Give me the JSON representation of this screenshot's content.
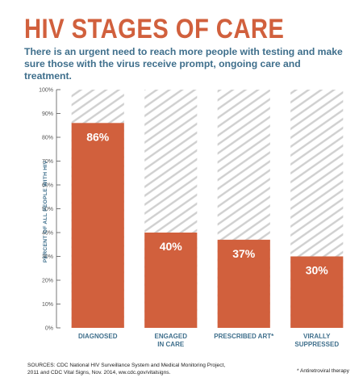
{
  "header": {
    "title": "HIV STAGES OF CARE",
    "subtitle": "There is an urgent need to reach more people with testing and make sure those with the virus receive prompt, ongoing care and treatment."
  },
  "colors": {
    "bar": "#d1603d",
    "title": "#d1603d",
    "accent_text": "#3f6f8c",
    "hatch": "#cfcfcf"
  },
  "chart_data": {
    "type": "bar",
    "categories": [
      [
        "DIAGNOSED"
      ],
      [
        "ENGAGED",
        "IN CARE"
      ],
      [
        "PRESCRIBED ART*"
      ],
      [
        "VIRALLY",
        "SUPPRESSED"
      ]
    ],
    "values": [
      86,
      40,
      37,
      30
    ],
    "value_labels": [
      "86%",
      "40%",
      "37%",
      "30%"
    ],
    "ylabel": "PERCENT OF ALL PEOPLE WITH HIV",
    "ylim": [
      0,
      100
    ],
    "yticks": [
      0,
      10,
      20,
      30,
      40,
      50,
      60,
      70,
      80,
      90,
      100
    ],
    "ytick_labels": [
      "0%",
      "10%",
      "20%",
      "30%",
      "40%",
      "50%",
      "60%",
      "70%",
      "80%",
      "90%",
      "100%"
    ],
    "background": "hatched"
  },
  "footer": {
    "sources": "SOURCES: CDC National HIV Surveillance System and Medical Monitoring Project, 2011 and CDC Vital Signs, Nov. 2014, ww.cdc.gov/vitalsigns.",
    "footnote": "* Antiretroviral therapy"
  }
}
